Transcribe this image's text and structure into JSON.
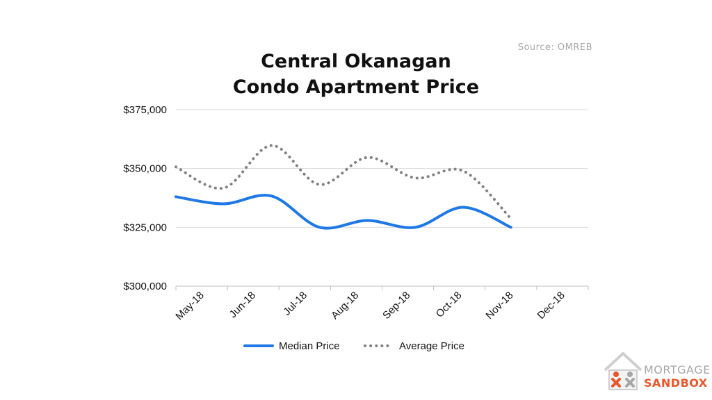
{
  "source": "Source: OMREB",
  "chart_data": {
    "type": "line",
    "title_line1": "Central Okanagan",
    "title_line2": "Condo Apartment Price",
    "categories": [
      "May-18",
      "Jun-18",
      "Jul-18",
      "Aug-18",
      "Sep-18",
      "Oct-18",
      "Nov-18",
      "Dec-18"
    ],
    "ylim": [
      300000,
      375000
    ],
    "yticks": [
      300000,
      325000,
      350000,
      375000
    ],
    "ytick_labels": [
      "$300,000",
      "$325,000",
      "$350,000",
      "$375,000"
    ],
    "grid": true,
    "legend_position": "bottom",
    "series": [
      {
        "name": "Median Price",
        "style": "solid",
        "color": "#1e78e6",
        "values": [
          338000,
          335000,
          338300,
          325000,
          327900,
          325000,
          333500,
          325000
        ]
      },
      {
        "name": "Average Price",
        "style": "dotted",
        "color": "#7f7f7f",
        "values": [
          350700,
          341700,
          359800,
          343200,
          354700,
          346000,
          349000,
          328700
        ]
      }
    ]
  },
  "logo": {
    "line1": "MORTGAGE",
    "line2": "SANDBOX",
    "orange": "#e8562a",
    "gray": "#a6a6a6"
  }
}
